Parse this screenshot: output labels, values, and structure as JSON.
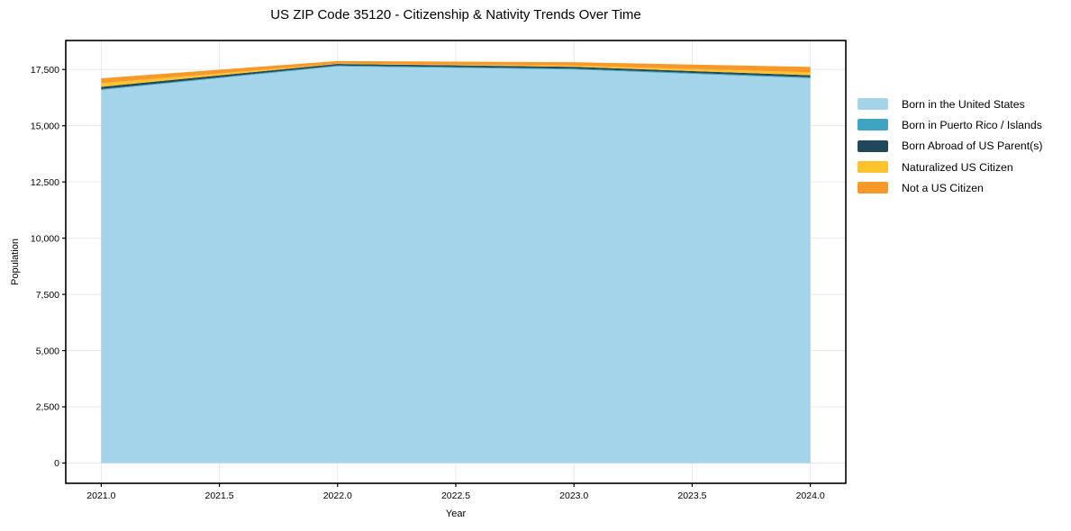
{
  "title": "US ZIP Code 35120 - Citizenship & Nativity Trends Over Time",
  "chart_data": {
    "type": "area",
    "stacked": true,
    "title": "US ZIP Code 35120 - Citizenship & Nativity Trends Over Time",
    "xlabel": "Year",
    "ylabel": "Population",
    "x": [
      2021,
      2022,
      2023,
      2024
    ],
    "series": [
      {
        "name": "Born in the United States",
        "color": "#A3D4E9",
        "values": [
          16590,
          17640,
          17500,
          17110
        ]
      },
      {
        "name": "Born in Puerto Rico / Islands",
        "color": "#3EA4C1",
        "values": [
          40,
          40,
          40,
          50
        ]
      },
      {
        "name": "Born Abroad of US Parent(s)",
        "color": "#20485C",
        "values": [
          100,
          70,
          80,
          85
        ]
      },
      {
        "name": "Naturalized US Citizen",
        "color": "#FCC32D",
        "values": [
          165,
          10,
          55,
          130
        ]
      },
      {
        "name": "Not a US Citizen",
        "color": "#F79928",
        "values": [
          215,
          115,
          150,
          240
        ]
      }
    ],
    "totals": [
      17110,
      17875,
      17825,
      17615
    ],
    "xlim": [
      2020.85,
      2024.15
    ],
    "ylim": [
      -900,
      18790
    ],
    "x_ticks": [
      {
        "value": 2021.0,
        "label": "2021.0"
      },
      {
        "value": 2021.5,
        "label": "2021.5"
      },
      {
        "value": 2022.0,
        "label": "2022.0"
      },
      {
        "value": 2022.5,
        "label": "2022.5"
      },
      {
        "value": 2023.0,
        "label": "2023.0"
      },
      {
        "value": 2023.5,
        "label": "2023.5"
      },
      {
        "value": 2024.0,
        "label": "2024.0"
      }
    ],
    "y_ticks": [
      {
        "value": 0,
        "label": "0"
      },
      {
        "value": 2500,
        "label": "2,500"
      },
      {
        "value": 5000,
        "label": "5,000"
      },
      {
        "value": 7500,
        "label": "7,500"
      },
      {
        "value": 10000,
        "label": "10,000"
      },
      {
        "value": 12500,
        "label": "12,500"
      },
      {
        "value": 15000,
        "label": "15,000"
      },
      {
        "value": 17500,
        "label": "17,500"
      }
    ],
    "grid": true,
    "grid_color": "#e9e9e9",
    "frame_color": "#000000",
    "legend_position": "right"
  }
}
